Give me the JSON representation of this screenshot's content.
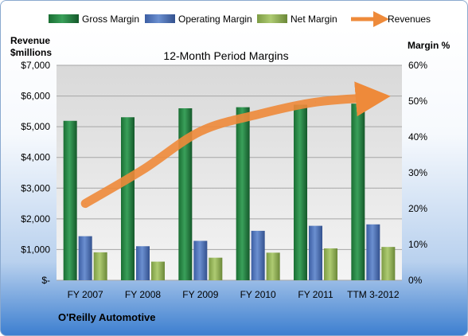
{
  "chart_data": {
    "type": "bar",
    "title": "12-Month Period Margins",
    "company": "O'Reilly Automotive",
    "categories": [
      "FY 2007",
      "FY 2008",
      "FY 2009",
      "FY 2010",
      "FY 2011",
      "TTM 3-2012"
    ],
    "left_axis": {
      "title_line1": "Revenue",
      "title_line2": "$millions",
      "min": 0,
      "max": 7000,
      "step": 1000,
      "tick_labels": [
        "$-",
        "$1,000",
        "$2,000",
        "$3,000",
        "$4,000",
        "$5,000",
        "$6,000",
        "$7,000"
      ]
    },
    "right_axis": {
      "title": "Margin %",
      "min": 0,
      "max": 60,
      "step": 10,
      "tick_labels": [
        "0%",
        "10%",
        "20%",
        "30%",
        "40%",
        "50%",
        "60%"
      ]
    },
    "series": [
      {
        "name": "Gross Margin",
        "axis": "right",
        "color": "#1f7a3a",
        "values": [
          44.5,
          45.5,
          48.0,
          48.3,
          49.0,
          49.3
        ]
      },
      {
        "name": "Operating Margin",
        "axis": "right",
        "color": "#4a6fb5",
        "values": [
          12.3,
          9.5,
          11.0,
          13.8,
          15.2,
          15.6
        ]
      },
      {
        "name": "Net Margin",
        "axis": "right",
        "color": "#93b159",
        "values": [
          7.8,
          5.2,
          6.3,
          7.7,
          8.9,
          9.3
        ]
      },
      {
        "name": "Revenues",
        "axis": "left",
        "type": "line",
        "color": "#ee8a3a",
        "values": [
          2500,
          3600,
          4850,
          5400,
          5800,
          5950
        ]
      }
    ],
    "legend_position": "top",
    "grid": true
  }
}
